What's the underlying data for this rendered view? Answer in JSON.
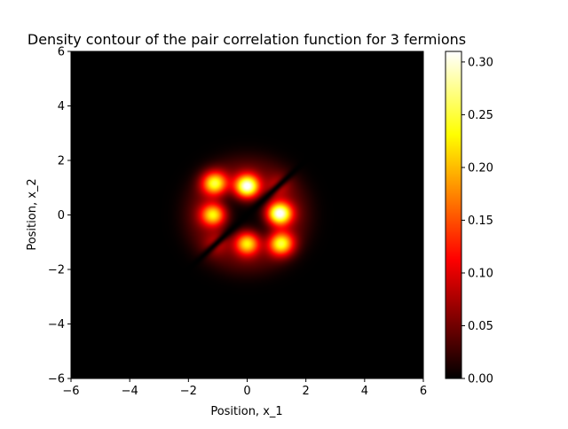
{
  "chart_data": {
    "type": "heatmap",
    "title": "Density contour of the pair correlation function for 3 fermions",
    "xlabel": "Position, x_1",
    "ylabel": "Position, x_2",
    "xlim": [
      -6,
      6
    ],
    "ylim": [
      -6,
      6
    ],
    "x_ticks": [
      "−6",
      "−4",
      "−2",
      "0",
      "2",
      "4",
      "6"
    ],
    "y_ticks": [
      "−6",
      "−4",
      "−2",
      "0",
      "2",
      "4",
      "6"
    ],
    "colorbar": {
      "range": [
        0.0,
        0.31
      ],
      "ticks": [
        "0.00",
        "0.05",
        "0.10",
        "0.15",
        "0.20",
        "0.25",
        "0.30"
      ],
      "tick_values": [
        0.0,
        0.05,
        0.1,
        0.15,
        0.2,
        0.25,
        0.3
      ],
      "colormap": "hot"
    },
    "peaks": [
      {
        "x": 0.0,
        "y": 1.05,
        "value": 0.31
      },
      {
        "x": 1.1,
        "y": 0.05,
        "value": 0.31
      },
      {
        "x": -1.1,
        "y": 1.15,
        "value": 0.22
      },
      {
        "x": -1.15,
        "y": 0.0,
        "value": 0.22
      },
      {
        "x": 0.0,
        "y": -1.05,
        "value": 0.22
      },
      {
        "x": 1.15,
        "y": -1.05,
        "value": 0.22
      },
      {
        "x": 1.0,
        "y": 1.0,
        "value": 0.06
      },
      {
        "x": -1.0,
        "y": -1.0,
        "value": 0.06
      }
    ],
    "nodal_line": "x_1 = x_2",
    "grid": false
  }
}
